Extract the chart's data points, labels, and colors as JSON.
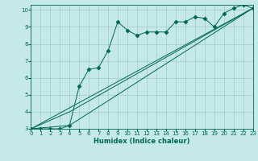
{
  "xlabel": "Humidex (Indice chaleur)",
  "xlim": [
    0,
    23
  ],
  "ylim": [
    3,
    10.3
  ],
  "xticks": [
    0,
    1,
    2,
    3,
    4,
    5,
    6,
    7,
    8,
    9,
    10,
    11,
    12,
    13,
    14,
    15,
    16,
    17,
    18,
    19,
    20,
    21,
    22,
    23
  ],
  "yticks": [
    3,
    4,
    5,
    6,
    7,
    8,
    9,
    10
  ],
  "background_color": "#c5e8e8",
  "grid_color": "#a8d0d0",
  "line_color": "#006655",
  "series1_x": [
    0,
    1,
    2,
    3,
    4,
    5,
    6,
    7,
    8,
    9,
    10,
    11,
    12,
    13,
    14,
    15,
    16,
    17,
    18,
    19,
    20,
    21,
    22,
    23
  ],
  "series1_y": [
    3.0,
    3.0,
    3.0,
    3.0,
    3.2,
    5.5,
    6.5,
    6.6,
    7.6,
    9.3,
    8.8,
    8.5,
    8.7,
    8.7,
    8.7,
    9.3,
    9.3,
    9.6,
    9.5,
    9.0,
    9.8,
    10.1,
    10.3,
    10.1
  ],
  "series2_x": [
    0,
    23
  ],
  "series2_y": [
    3.0,
    10.1
  ],
  "series3_x": [
    0,
    4,
    23
  ],
  "series3_y": [
    3.0,
    4.0,
    10.1
  ],
  "series4_x": [
    0,
    4,
    23
  ],
  "series4_y": [
    3.0,
    3.2,
    10.1
  ],
  "tick_fontsize": 5.0,
  "xlabel_fontsize": 6.0,
  "marker_size": 2.5,
  "line_width": 0.7
}
